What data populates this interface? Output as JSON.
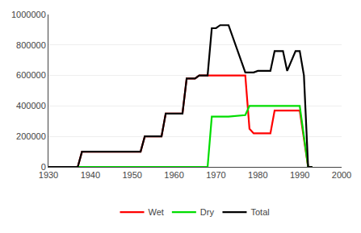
{
  "chart_data": {
    "type": "line",
    "series": [
      {
        "name": "Wet",
        "color": "#FF0000",
        "x": [
          1930,
          1937,
          1938,
          1946,
          1947,
          1952,
          1953,
          1957,
          1958,
          1962,
          1963,
          1965,
          1966,
          1968,
          1969,
          1972,
          1973,
          1977,
          1978,
          1979,
          1980,
          1983,
          1984,
          1989,
          1990,
          1992,
          1993
        ],
        "values": [
          0,
          0,
          100000,
          100000,
          100000,
          100000,
          200000,
          200000,
          350000,
          350000,
          580000,
          580000,
          600000,
          600000,
          600000,
          600000,
          600000,
          600000,
          250000,
          220000,
          220000,
          220000,
          370000,
          370000,
          370000,
          0,
          0
        ]
      },
      {
        "name": "Dry",
        "color": "#00DD00",
        "x": [
          1930,
          1968,
          1969,
          1972,
          1973,
          1977,
          1978,
          1980,
          1981,
          1989,
          1990,
          1992,
          1993
        ],
        "values": [
          0,
          0,
          330000,
          330000,
          330000,
          340000,
          400000,
          400000,
          400000,
          400000,
          400000,
          0,
          0
        ]
      },
      {
        "name": "Total",
        "color": "#000000",
        "x": [
          1930,
          1937,
          1938,
          1946,
          1947,
          1952,
          1953,
          1957,
          1958,
          1962,
          1963,
          1965,
          1966,
          1968,
          1969,
          1970,
          1971,
          1972,
          1973,
          1977,
          1978,
          1979,
          1980,
          1983,
          1984,
          1986,
          1987,
          1989,
          1990,
          1991,
          1992,
          1993
        ],
        "values": [
          0,
          0,
          100000,
          100000,
          100000,
          100000,
          200000,
          200000,
          350000,
          350000,
          580000,
          580000,
          600000,
          600000,
          910000,
          910000,
          930000,
          930000,
          930000,
          620000,
          620000,
          620000,
          630000,
          630000,
          760000,
          760000,
          630000,
          760000,
          760000,
          600000,
          0,
          0
        ]
      }
    ],
    "xlim": [
      1930,
      2000
    ],
    "xticks": [
      1930,
      1940,
      1950,
      1960,
      1970,
      1980,
      1990,
      2000
    ],
    "ylim": [
      0,
      1000000
    ],
    "yticks": [
      0,
      200000,
      400000,
      600000,
      800000,
      1000000
    ],
    "grid": "y",
    "legend": "bottom"
  }
}
